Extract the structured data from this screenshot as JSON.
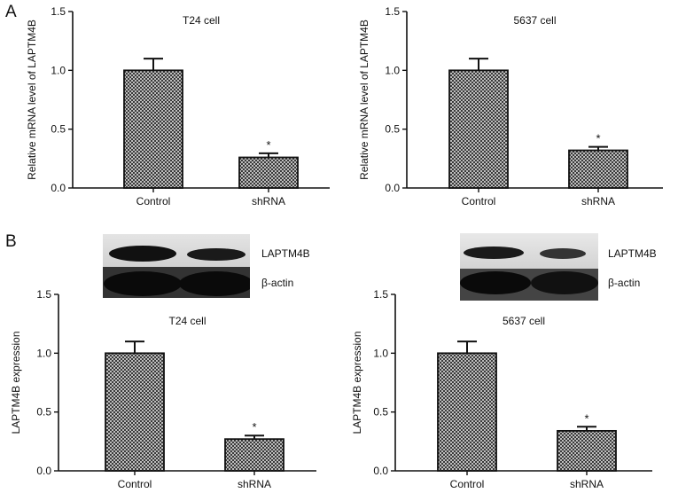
{
  "figure": {
    "panel_labels": [
      "A",
      "B"
    ]
  },
  "blots": [
    {
      "labels": [
        "LAPTM4B",
        "β-actin"
      ]
    },
    {
      "labels": [
        "LAPTM4B",
        "β-actin"
      ]
    }
  ],
  "colors": {
    "bar_fill": "#8c8c8c",
    "stroke": "#111111"
  },
  "chart_data": [
    {
      "type": "bar",
      "title": "T24 cell",
      "xlabel": "",
      "ylabel": "Relative mRNA level of LAPTM4B",
      "categories": [
        "Control",
        "shRNA"
      ],
      "values": [
        1.0,
        0.26
      ],
      "errors": [
        0.1,
        0.035
      ],
      "annotations": [
        "",
        "*"
      ],
      "ylim": [
        0,
        1.5
      ],
      "yticks": [
        "0.0",
        "0.5",
        "1.0",
        "1.5"
      ]
    },
    {
      "type": "bar",
      "title": "5637 cell",
      "xlabel": "",
      "ylabel": "Relative mRNA level of LAPTM4B",
      "categories": [
        "Control",
        "shRNA"
      ],
      "values": [
        1.0,
        0.32
      ],
      "errors": [
        0.1,
        0.03
      ],
      "annotations": [
        "",
        "*"
      ],
      "ylim": [
        0,
        1.5
      ],
      "yticks": [
        "0.0",
        "0.5",
        "1.0",
        "1.5"
      ]
    },
    {
      "type": "bar",
      "title": "T24 cell",
      "xlabel": "",
      "ylabel": "LAPTM4B expression",
      "categories": [
        "Control",
        "shRNA"
      ],
      "values": [
        1.0,
        0.27
      ],
      "errors": [
        0.1,
        0.03
      ],
      "annotations": [
        "",
        "*"
      ],
      "ylim": [
        0,
        1.5
      ],
      "yticks": [
        "0.0",
        "0.5",
        "1.0",
        "1.5"
      ]
    },
    {
      "type": "bar",
      "title": "5637 cell",
      "xlabel": "",
      "ylabel": "LAPTM4B expression",
      "categories": [
        "Control",
        "shRNA"
      ],
      "values": [
        1.0,
        0.34
      ],
      "errors": [
        0.1,
        0.035
      ],
      "annotations": [
        "",
        "*"
      ],
      "ylim": [
        0,
        1.5
      ],
      "yticks": [
        "0.0",
        "0.5",
        "1.0",
        "1.5"
      ]
    }
  ]
}
